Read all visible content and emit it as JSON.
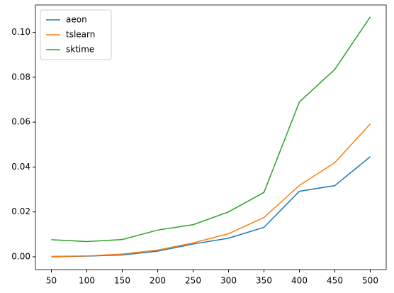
{
  "chart_data": {
    "type": "line",
    "x": [
      50,
      100,
      150,
      200,
      250,
      300,
      350,
      400,
      450,
      500
    ],
    "series": [
      {
        "name": "aeon",
        "color": "#1f77b4",
        "values": [
          0.0,
          0.0003,
          0.0008,
          0.0025,
          0.0057,
          0.0083,
          0.0131,
          0.0292,
          0.0317,
          0.0446
        ]
      },
      {
        "name": "tslearn",
        "color": "#ff7f0e",
        "values": [
          0.0002,
          0.0004,
          0.0012,
          0.003,
          0.0062,
          0.0103,
          0.0175,
          0.0318,
          0.042,
          0.0592
        ]
      },
      {
        "name": "sktime",
        "color": "#2ca02c",
        "values": [
          0.0076,
          0.0068,
          0.0077,
          0.0119,
          0.0143,
          0.02,
          0.0287,
          0.069,
          0.0835,
          0.1069
        ]
      }
    ],
    "xlim": [
      27.5,
      522.5
    ],
    "xticks": [
      50,
      100,
      150,
      200,
      250,
      300,
      350,
      400,
      450,
      500
    ],
    "ylim": [
      -0.0057,
      0.1122
    ],
    "yticks": [
      {
        "value": 0,
        "label": "0.00"
      },
      {
        "value": 0.02,
        "label": "0.02"
      },
      {
        "value": 0.04,
        "label": "0.04"
      },
      {
        "value": 0.06,
        "label": "0.06"
      },
      {
        "value": 0.08,
        "label": "0.08"
      },
      {
        "value": 0.1,
        "label": "0.10"
      }
    ],
    "legend": "upper left"
  }
}
